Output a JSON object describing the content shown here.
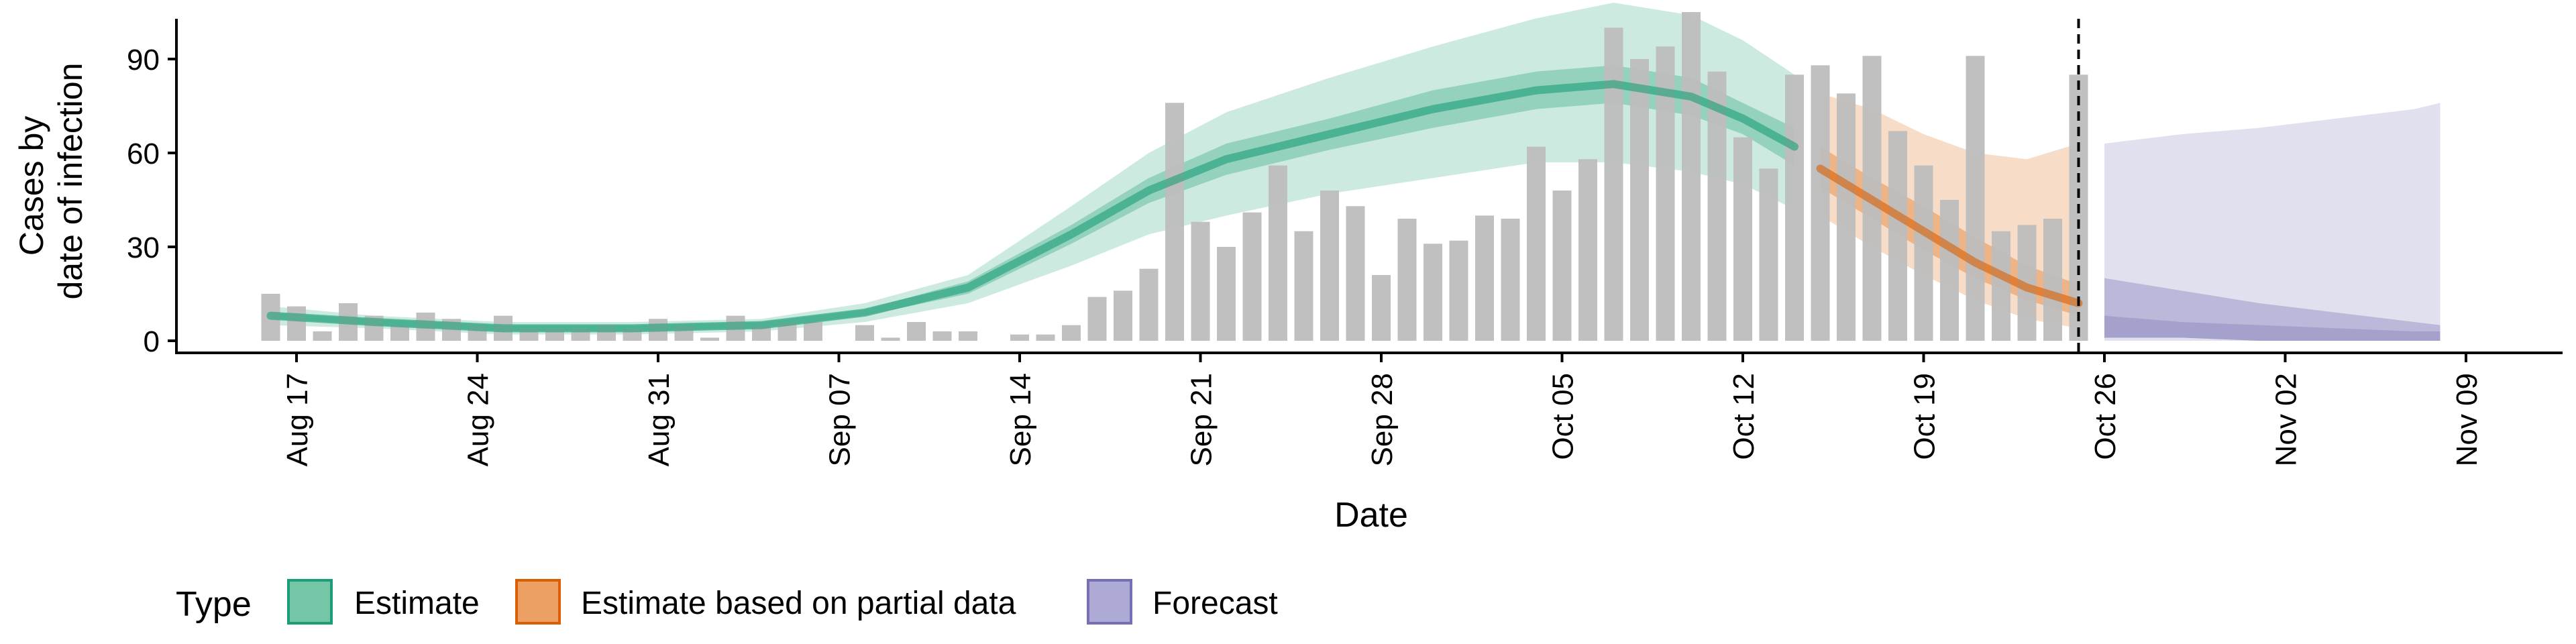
{
  "chart_data": {
    "type": "bar",
    "xlabel": "Date",
    "ylabel": [
      "Cases by",
      "date of infection"
    ],
    "y_ticks": [
      0,
      30,
      60,
      90
    ],
    "ylim": [
      -5,
      115
    ],
    "x_start": "2020-08-15",
    "x_ticks": [
      "Aug 17",
      "Aug 24",
      "Aug 31",
      "Sep 07",
      "Sep 14",
      "Sep 21",
      "Sep 28",
      "Oct 05",
      "Oct 12",
      "Oct 19",
      "Oct 26",
      "Nov 02",
      "Nov 09"
    ],
    "x_tick_dates": [
      "2020-08-17",
      "2020-08-24",
      "2020-08-31",
      "2020-09-07",
      "2020-09-14",
      "2020-09-21",
      "2020-09-28",
      "2020-10-05",
      "2020-10-12",
      "2020-10-19",
      "2020-10-26",
      "2020-11-02",
      "2020-11-09"
    ],
    "xlim": [
      "2020-08-15",
      "2020-11-12"
    ],
    "vline_date": "2020-10-25",
    "bars": {
      "color": "#bdbdbd",
      "dates": [
        "2020-08-16",
        "2020-08-17",
        "2020-08-18",
        "2020-08-19",
        "2020-08-20",
        "2020-08-21",
        "2020-08-22",
        "2020-08-23",
        "2020-08-24",
        "2020-08-25",
        "2020-08-26",
        "2020-08-27",
        "2020-08-28",
        "2020-08-29",
        "2020-08-30",
        "2020-08-31",
        "2020-09-01",
        "2020-09-02",
        "2020-09-03",
        "2020-09-04",
        "2020-09-05",
        "2020-09-06",
        "2020-09-07",
        "2020-09-08",
        "2020-09-09",
        "2020-09-10",
        "2020-09-11",
        "2020-09-12",
        "2020-09-13",
        "2020-09-14",
        "2020-09-15",
        "2020-09-16",
        "2020-09-17",
        "2020-09-18",
        "2020-09-19",
        "2020-09-20",
        "2020-09-21",
        "2020-09-22",
        "2020-09-23",
        "2020-09-24",
        "2020-09-25",
        "2020-09-26",
        "2020-09-27",
        "2020-09-28",
        "2020-09-29",
        "2020-09-30",
        "2020-10-01",
        "2020-10-02",
        "2020-10-03",
        "2020-10-04",
        "2020-10-05",
        "2020-10-06",
        "2020-10-07",
        "2020-10-08",
        "2020-10-09",
        "2020-10-10",
        "2020-10-11",
        "2020-10-12",
        "2020-10-13",
        "2020-10-14",
        "2020-10-15",
        "2020-10-16",
        "2020-10-17",
        "2020-10-18",
        "2020-10-19",
        "2020-10-20",
        "2020-10-21",
        "2020-10-22",
        "2020-10-23",
        "2020-10-24",
        "2020-10-25"
      ],
      "values": [
        15,
        11,
        3,
        12,
        8,
        5,
        9,
        7,
        5,
        8,
        4,
        4,
        4,
        5,
        4,
        7,
        5,
        1,
        8,
        5,
        6,
        6,
        0,
        5,
        1,
        6,
        3,
        3,
        0,
        2,
        2,
        5,
        14,
        16,
        23,
        76,
        38,
        30,
        41,
        56,
        35,
        48,
        43,
        21,
        39,
        31,
        32,
        40,
        39,
        62,
        48,
        58,
        100,
        90,
        94,
        105,
        86,
        65,
        55,
        85,
        88,
        79,
        91,
        67,
        56,
        45,
        91,
        35,
        37,
        39,
        85
      ]
    },
    "series": [
      {
        "name": "Estimate",
        "color": "#1b9e77",
        "dates": [
          "2020-08-16",
          "2020-08-20",
          "2020-08-25",
          "2020-08-30",
          "2020-09-04",
          "2020-09-08",
          "2020-09-12",
          "2020-09-16",
          "2020-09-19",
          "2020-09-22",
          "2020-09-26",
          "2020-09-30",
          "2020-10-04",
          "2020-10-07",
          "2020-10-10",
          "2020-10-12",
          "2020-10-14"
        ],
        "median": [
          8,
          6,
          4,
          4,
          5,
          9,
          17,
          34,
          48,
          58,
          66,
          74,
          80,
          82,
          78,
          71,
          62
        ],
        "lower90": [
          5,
          4,
          2,
          2,
          3,
          6,
          12,
          24,
          34,
          40,
          47,
          52,
          57,
          57,
          54,
          50,
          42
        ],
        "upper90": [
          11,
          8,
          6,
          6,
          7,
          12,
          21,
          43,
          60,
          73,
          84,
          94,
          103,
          108,
          104,
          96,
          85
        ],
        "lower50": [
          7,
          5,
          3,
          3,
          4,
          8,
          15,
          31,
          44,
          53,
          61,
          68,
          74,
          76,
          72,
          66,
          56
        ],
        "upper50": [
          9,
          7,
          5,
          5,
          6,
          10,
          19,
          37,
          52,
          63,
          71,
          80,
          86,
          88,
          84,
          76,
          68
        ]
      },
      {
        "name": "Estimate based on partial data",
        "color": "#d95f02",
        "dates": [
          "2020-10-15",
          "2020-10-17",
          "2020-10-19",
          "2020-10-21",
          "2020-10-23",
          "2020-10-25"
        ],
        "median": [
          55,
          45,
          35,
          25,
          17,
          12
        ],
        "lower90": [
          40,
          30,
          21,
          13,
          7,
          4
        ],
        "upper90": [
          79,
          74,
          66,
          60,
          58,
          63
        ],
        "lower50": [
          49,
          39,
          29,
          20,
          13,
          8
        ],
        "upper50": [
          62,
          52,
          43,
          33,
          24,
          18
        ]
      },
      {
        "name": "Forecast",
        "color": "#7570b3",
        "dates": [
          "2020-10-26",
          "2020-10-29",
          "2020-11-01",
          "2020-11-04",
          "2020-11-07",
          "2020-11-08"
        ],
        "lower90": [
          0,
          0,
          0,
          0,
          0,
          0
        ],
        "upper90": [
          63,
          66,
          68,
          71,
          74,
          76
        ],
        "lower50": [
          1,
          1,
          0,
          0,
          0,
          0
        ],
        "upper50": [
          8,
          6,
          5,
          4,
          3,
          3
        ],
        "upper20": [
          20,
          16,
          12,
          9,
          6,
          5
        ]
      }
    ],
    "legend": {
      "title": "Type",
      "position": "bottom-left",
      "items": [
        {
          "label": "Estimate",
          "fill": "#74c6a7",
          "stroke": "#1b9e77"
        },
        {
          "label": "Estimate based on partial data",
          "fill": "#eca064",
          "stroke": "#d95f02"
        },
        {
          "label": "Forecast",
          "fill": "#aeaad6",
          "stroke": "#7570b3"
        }
      ]
    },
    "grid": false
  }
}
